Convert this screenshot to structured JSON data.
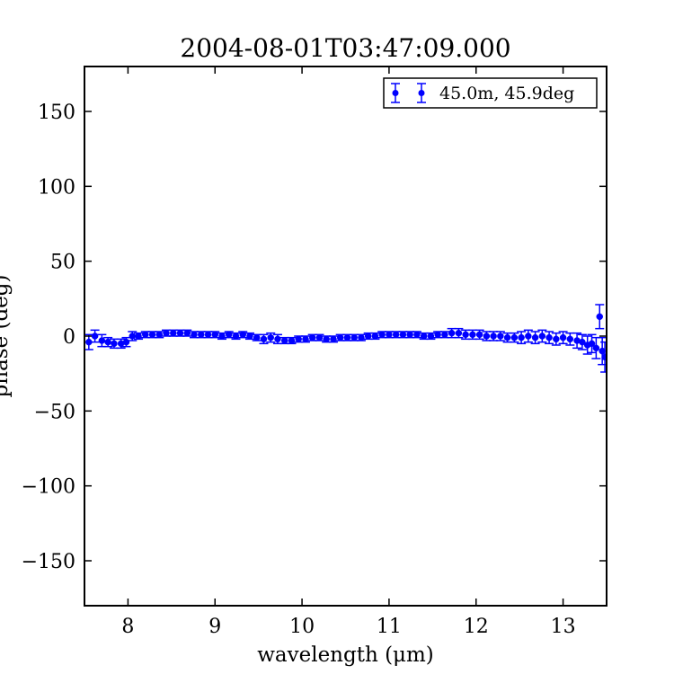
{
  "chart_data": {
    "type": "scatter",
    "title": "2004-08-01T03:47:09.000",
    "xlabel": "wavelength (μm)",
    "ylabel": "phase (deg)",
    "xlim": [
      7.5,
      13.5
    ],
    "ylim": [
      -180,
      180
    ],
    "xticks": [
      8,
      9,
      10,
      11,
      12,
      13
    ],
    "yticks": [
      -150,
      -100,
      -50,
      0,
      50,
      100,
      150
    ],
    "xtick_labels": [
      "8",
      "9",
      "10",
      "11",
      "12",
      "13"
    ],
    "ytick_labels": [
      "−150",
      "−100",
      "−50",
      "0",
      "50",
      "100",
      "150"
    ],
    "grid": false,
    "legend_position": "top-right",
    "series": [
      {
        "name": "45.0m, 45.9deg",
        "color": "#0000ff",
        "marker": "circle-with-errorbars",
        "x": [
          7.55,
          7.62,
          7.7,
          7.77,
          7.84,
          7.92,
          7.98,
          8.05,
          8.12,
          8.2,
          8.28,
          8.36,
          8.44,
          8.52,
          8.6,
          8.68,
          8.76,
          8.84,
          8.92,
          9.0,
          9.08,
          9.16,
          9.24,
          9.32,
          9.4,
          9.48,
          9.56,
          9.64,
          9.72,
          9.8,
          9.88,
          9.96,
          10.04,
          10.12,
          10.2,
          10.28,
          10.36,
          10.44,
          10.52,
          10.6,
          10.68,
          10.76,
          10.84,
          10.92,
          11.0,
          11.08,
          11.16,
          11.24,
          11.32,
          11.4,
          11.48,
          11.56,
          11.64,
          11.72,
          11.8,
          11.88,
          11.96,
          12.04,
          12.12,
          12.2,
          12.28,
          12.36,
          12.44,
          12.52,
          12.6,
          12.68,
          12.76,
          12.84,
          12.92,
          13.0,
          13.08,
          13.16,
          13.22,
          13.28,
          13.33,
          13.38,
          13.42,
          13.45,
          13.48
        ],
        "y": [
          -4,
          0,
          -3,
          -4,
          -5,
          -5,
          -4,
          0,
          0,
          1,
          1,
          1,
          2,
          2,
          2,
          2,
          1,
          1,
          1,
          1,
          0,
          1,
          0,
          1,
          0,
          -1,
          -2,
          -1,
          -2,
          -3,
          -3,
          -2,
          -2,
          -1,
          -1,
          -2,
          -2,
          -1,
          -1,
          -1,
          -1,
          0,
          0,
          1,
          1,
          1,
          1,
          1,
          1,
          0,
          0,
          1,
          1,
          2,
          2,
          1,
          1,
          1,
          0,
          0,
          0,
          -1,
          -1,
          -1,
          0,
          -1,
          0,
          -1,
          -2,
          -1,
          -2,
          -3,
          -4,
          -6,
          -5,
          -8,
          13,
          -10,
          -14
        ],
        "yerr": [
          5,
          4,
          4,
          3,
          3,
          3,
          3,
          3,
          2,
          2,
          2,
          2,
          2,
          2,
          2,
          2,
          2,
          2,
          2,
          2,
          2,
          2,
          2,
          2,
          2,
          2,
          3,
          3,
          3,
          2,
          2,
          2,
          2,
          2,
          2,
          2,
          2,
          2,
          2,
          2,
          2,
          2,
          2,
          2,
          2,
          2,
          2,
          2,
          2,
          2,
          2,
          2,
          2,
          3,
          3,
          3,
          3,
          3,
          3,
          3,
          3,
          3,
          3,
          4,
          4,
          4,
          4,
          4,
          4,
          4,
          4,
          5,
          5,
          6,
          6,
          7,
          8,
          9,
          10
        ]
      }
    ]
  }
}
